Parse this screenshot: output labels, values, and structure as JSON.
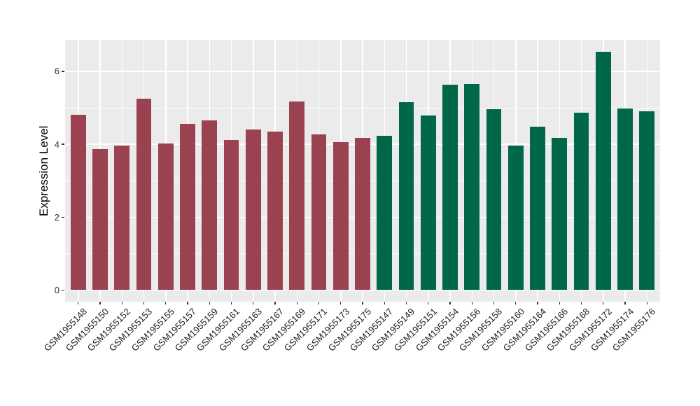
{
  "chart_data": {
    "type": "bar",
    "title": "",
    "xlabel": "",
    "ylabel": "Expression Level",
    "ylim": [
      -0.34,
      6.87
    ],
    "yticks": [
      0,
      2,
      4,
      6
    ],
    "yticks_minor": [
      1,
      3,
      5
    ],
    "grid": "horizontal major+minor and vertical major, white lines on gray panel",
    "legend": "none",
    "panel_bg": "#EBEBEB",
    "grid_color": "#FFFFFF",
    "tick_text_color": "#333333",
    "group_colors": {
      "red": "#9A4250",
      "green": "#006748"
    },
    "bars": [
      {
        "label": "GSM1955148",
        "value": 4.81,
        "group": "red"
      },
      {
        "label": "GSM1955150",
        "value": 3.86,
        "group": "red"
      },
      {
        "label": "GSM1955152",
        "value": 3.97,
        "group": "red"
      },
      {
        "label": "GSM1955153",
        "value": 5.24,
        "group": "red"
      },
      {
        "label": "GSM1955155",
        "value": 4.02,
        "group": "red"
      },
      {
        "label": "GSM1955157",
        "value": 4.56,
        "group": "red"
      },
      {
        "label": "GSM1955159",
        "value": 4.65,
        "group": "red"
      },
      {
        "label": "GSM1955161",
        "value": 4.12,
        "group": "red"
      },
      {
        "label": "GSM1955163",
        "value": 4.41,
        "group": "red"
      },
      {
        "label": "GSM1955167",
        "value": 4.35,
        "group": "red"
      },
      {
        "label": "GSM1955169",
        "value": 5.17,
        "group": "red"
      },
      {
        "label": "GSM1955171",
        "value": 4.28,
        "group": "red"
      },
      {
        "label": "GSM1955173",
        "value": 4.06,
        "group": "red"
      },
      {
        "label": "GSM1955175",
        "value": 4.18,
        "group": "red"
      },
      {
        "label": "GSM1955147",
        "value": 4.23,
        "group": "green"
      },
      {
        "label": "GSM1955149",
        "value": 5.16,
        "group": "green"
      },
      {
        "label": "GSM1955151",
        "value": 4.78,
        "group": "green"
      },
      {
        "label": "GSM1955154",
        "value": 5.63,
        "group": "green"
      },
      {
        "label": "GSM1955156",
        "value": 5.65,
        "group": "green"
      },
      {
        "label": "GSM1955158",
        "value": 4.96,
        "group": "green"
      },
      {
        "label": "GSM1955160",
        "value": 3.97,
        "group": "green"
      },
      {
        "label": "GSM1955164",
        "value": 4.49,
        "group": "green"
      },
      {
        "label": "GSM1955166",
        "value": 4.18,
        "group": "green"
      },
      {
        "label": "GSM1955168",
        "value": 4.87,
        "group": "green"
      },
      {
        "label": "GSM1955172",
        "value": 6.54,
        "group": "green"
      },
      {
        "label": "GSM1955174",
        "value": 4.98,
        "group": "green"
      },
      {
        "label": "GSM1955176",
        "value": 4.9,
        "group": "green"
      }
    ]
  }
}
